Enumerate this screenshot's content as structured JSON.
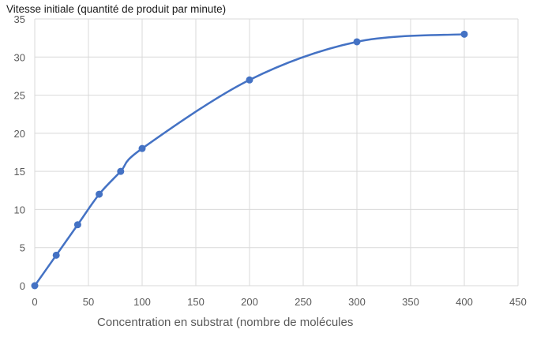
{
  "chart_data": {
    "type": "line",
    "title": "",
    "xlabel": "Concentration en substrat (nombre de molécules",
    "ylabel": "Vitesse initiale (quantité de produit par minute)",
    "xlim": [
      0,
      450
    ],
    "ylim": [
      0,
      35
    ],
    "xticks": [
      0,
      50,
      100,
      150,
      200,
      250,
      300,
      350,
      400,
      450
    ],
    "yticks": [
      0,
      5,
      10,
      15,
      20,
      25,
      30,
      35
    ],
    "grid": true,
    "smooth": true,
    "legend": "none",
    "series": [
      {
        "color": "#4472c4",
        "x": [
          0,
          20,
          40,
          60,
          80,
          100,
          200,
          300,
          400
        ],
        "y": [
          0,
          4,
          8,
          12,
          15,
          18,
          27,
          32,
          33
        ]
      }
    ]
  }
}
